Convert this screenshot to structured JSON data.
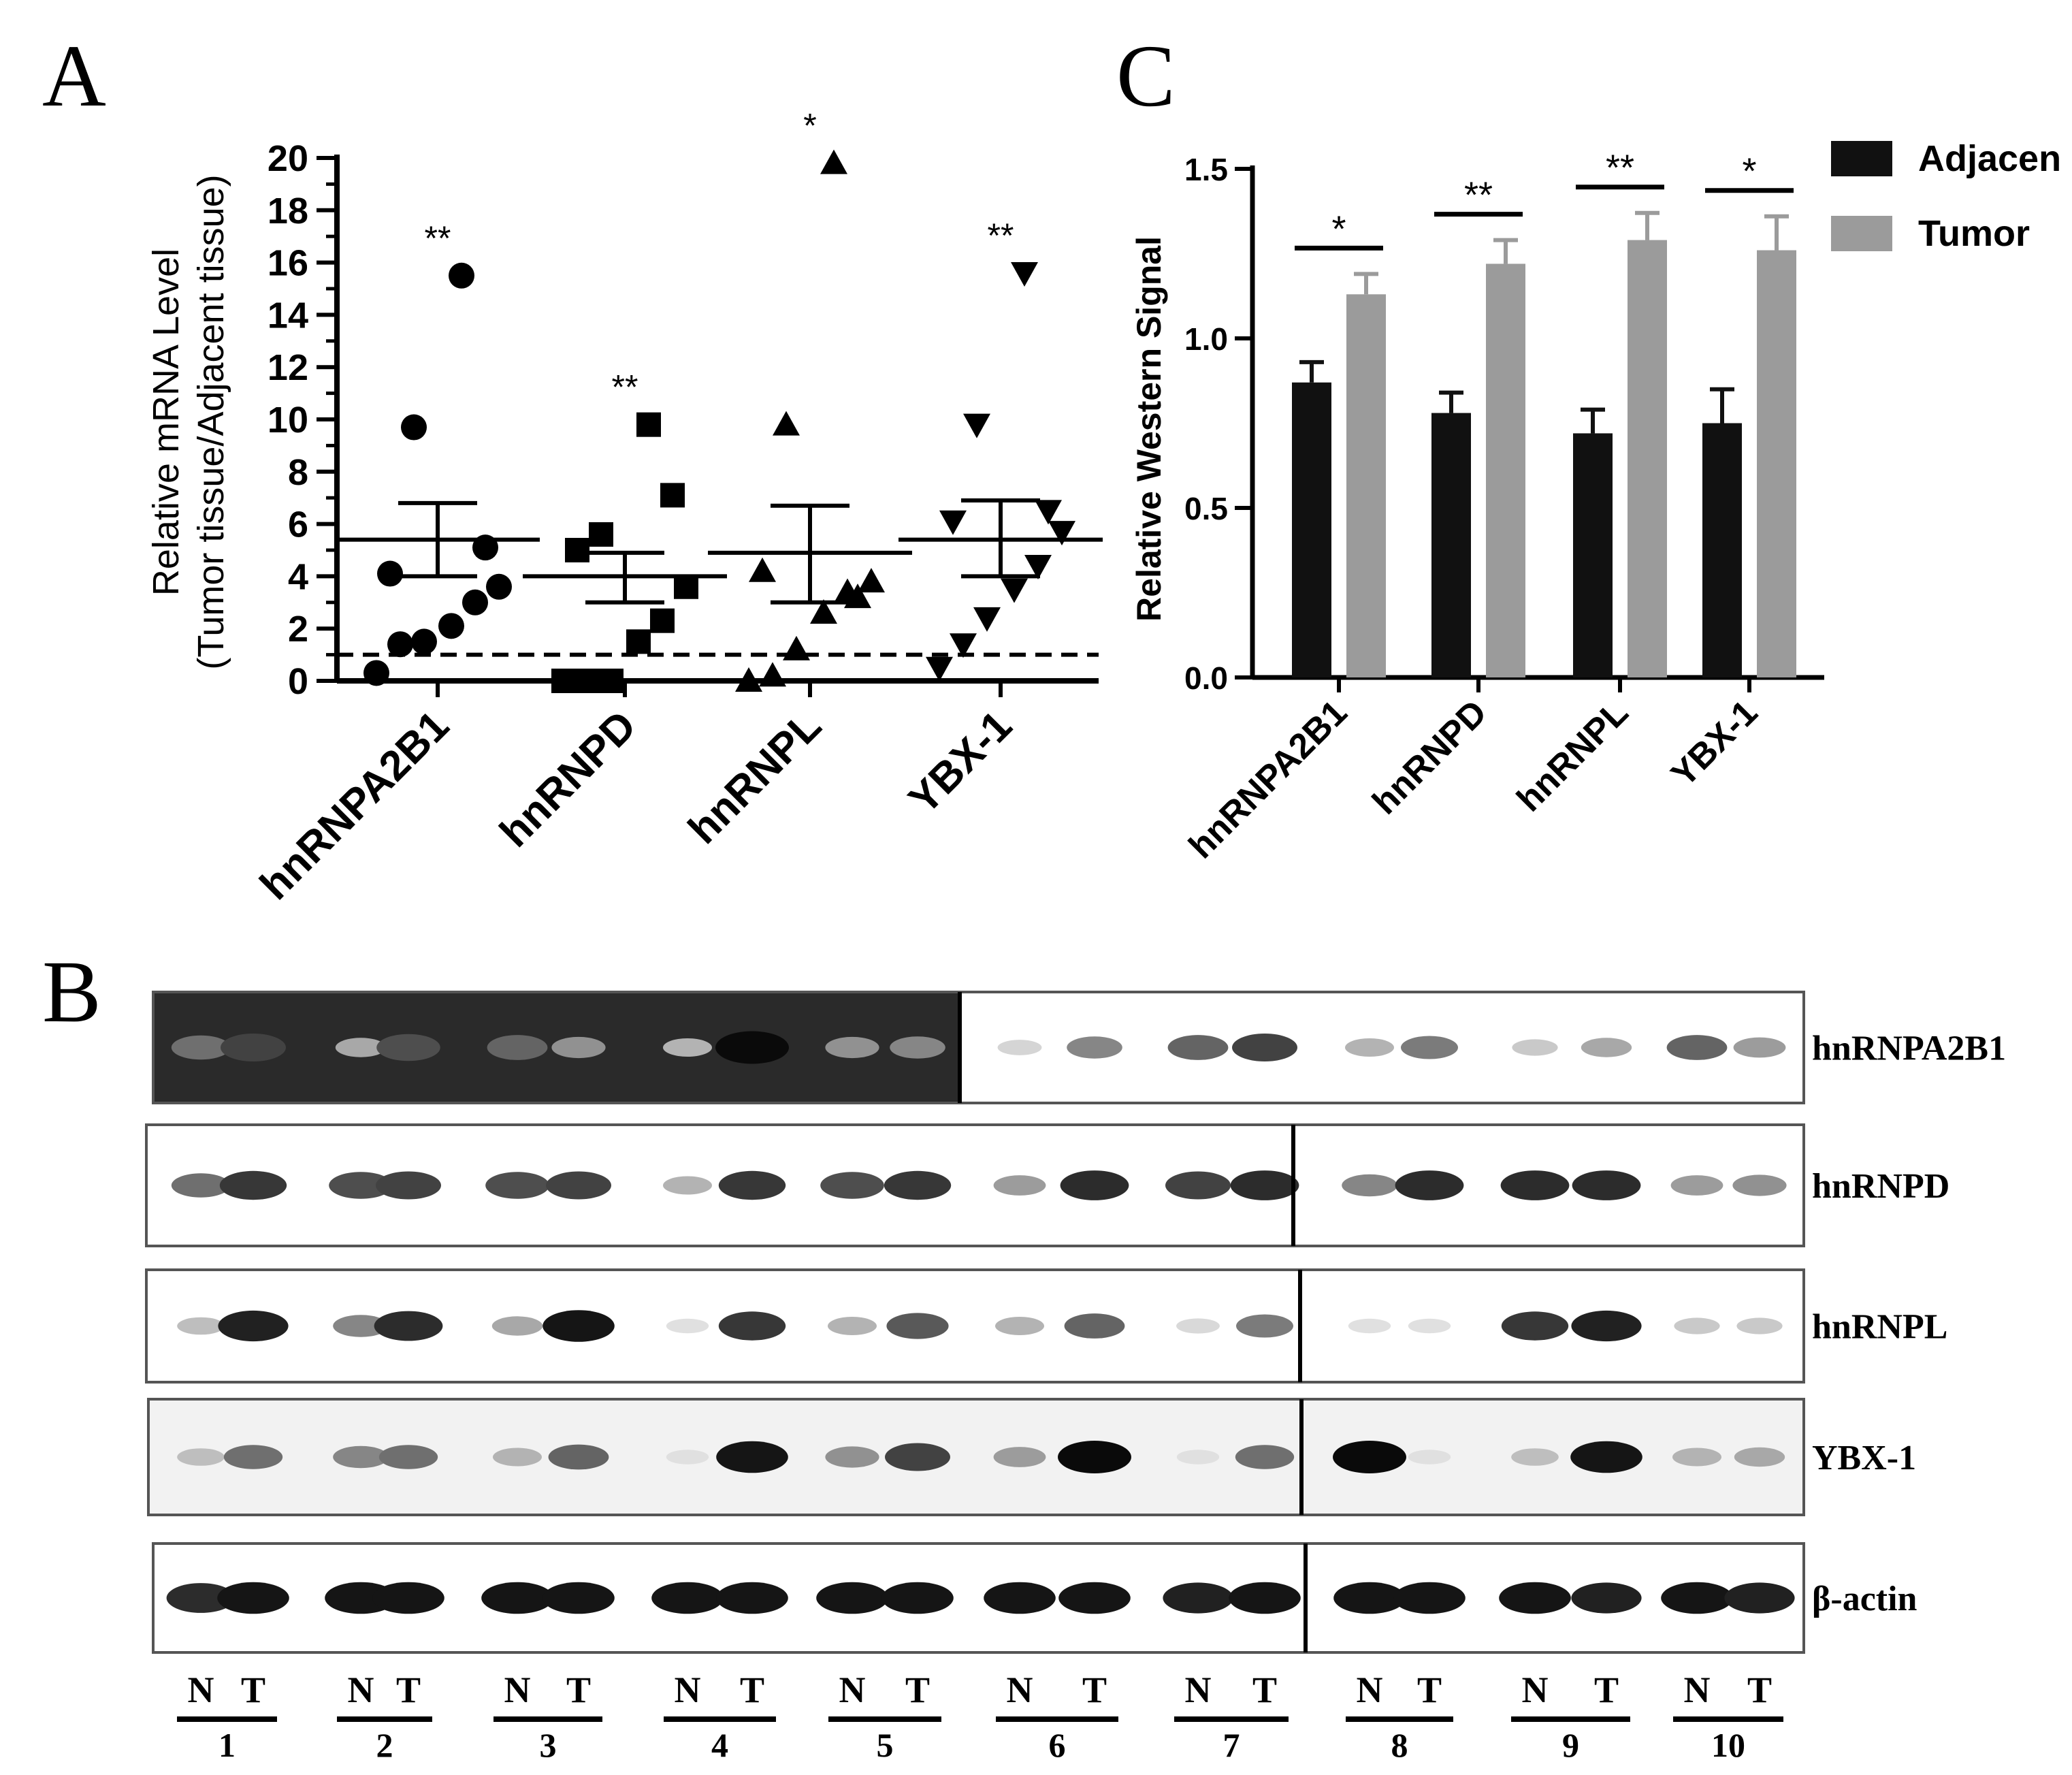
{
  "panels": {
    "a_letter": "A",
    "b_letter": "B",
    "c_letter": "C"
  },
  "chart_data": [
    {
      "type": "scatter",
      "ylabel_line1": "Relative mRNA Level",
      "ylabel_line2": "(Tumor tissue/Adjacent tissue)",
      "ylim": [
        0,
        20
      ],
      "yticks": [
        "0",
        "2",
        "4",
        "6",
        "8",
        "10",
        "12",
        "14",
        "16",
        "18",
        "20"
      ],
      "categories": [
        "hnRNPA2B1",
        "hnRNPD",
        "hnRNPL",
        "YBX-1"
      ],
      "markers": [
        "circle",
        "square",
        "triangle-up",
        "triangle-down"
      ],
      "reference_line": 1,
      "significance": [
        "**",
        "**",
        "*",
        "**"
      ],
      "groups": [
        {
          "name": "hnRNPA2B1",
          "values": [
            0.3,
            1.4,
            1.5,
            2.1,
            3.0,
            3.6,
            4.1,
            5.1,
            9.7,
            15.5
          ],
          "mean": 5.4,
          "sem_low": 4.0,
          "sem_high": 6.8
        },
        {
          "name": "hnRNPD",
          "values": [
            0,
            0,
            0,
            1.5,
            2.3,
            3.6,
            5.0,
            7.1,
            5.6,
            9.8
          ],
          "mean": 4.0,
          "sem_low": 3.0,
          "sem_high": 4.9
        },
        {
          "name": "hnRNPL",
          "values": [
            0,
            0.2,
            1.2,
            2.6,
            3.4,
            3.8,
            4.2,
            3.2,
            9.8,
            19.8
          ],
          "mean": 4.9,
          "sem_low": 3.0,
          "sem_high": 6.7
        },
        {
          "name": "YBX-1",
          "values": [
            0.5,
            1.4,
            2.4,
            3.5,
            4.4,
            5.7,
            6.1,
            6.5,
            9.8,
            15.6
          ],
          "mean": 5.4,
          "sem_low": 4.0,
          "sem_high": 6.9
        }
      ]
    },
    {
      "type": "bar",
      "ylabel": "Relative Western Signal",
      "ylim": [
        0,
        1.5
      ],
      "yticks": [
        "0.0",
        "0.5",
        "1.0",
        "1.5"
      ],
      "categories": [
        "hnRNPA2B1",
        "hnRNPD",
        "hnRNPL",
        "YBX-1"
      ],
      "legend_placement": "top-right",
      "significance": [
        "*",
        "**",
        "**",
        "*"
      ],
      "series": [
        {
          "name": "Adjacen",
          "color": "#111111",
          "values": [
            0.87,
            0.78,
            0.72,
            0.75
          ],
          "errors": [
            0.06,
            0.06,
            0.07,
            0.1
          ]
        },
        {
          "name": "Tumor",
          "color": "#9b9b9b",
          "values": [
            1.13,
            1.22,
            1.29,
            1.26
          ],
          "errors": [
            0.06,
            0.07,
            0.08,
            0.1
          ]
        }
      ]
    }
  ],
  "blot": {
    "proteins": [
      "hnRNPA2B1",
      "hnRNPD",
      "hnRNPL",
      "YBX-1",
      "β-actin"
    ],
    "lane_labels": [
      "N",
      "T",
      "N",
      "T",
      "N",
      "T",
      "N",
      "T",
      "N",
      "T",
      "N",
      "T",
      "N",
      "T",
      "N",
      "T",
      "N",
      "T",
      "N",
      "T"
    ],
    "samples": [
      "1",
      "2",
      "3",
      "4",
      "5",
      "6",
      "7",
      "8",
      "9",
      "10"
    ],
    "intensities": [
      [
        0.55,
        0.75,
        0.3,
        0.7,
        0.6,
        0.4,
        0.25,
        1.0,
        0.4,
        0.45,
        0.1,
        0.45,
        0.6,
        0.75,
        0.25,
        0.5,
        0.15,
        0.3,
        0.6,
        0.35
      ],
      [
        0.55,
        0.8,
        0.7,
        0.75,
        0.7,
        0.75,
        0.25,
        0.8,
        0.7,
        0.8,
        0.35,
        0.85,
        0.75,
        0.85,
        0.45,
        0.85,
        0.85,
        0.85,
        0.35,
        0.4
      ],
      [
        0.2,
        0.9,
        0.45,
        0.85,
        0.3,
        0.95,
        0.05,
        0.8,
        0.25,
        0.65,
        0.25,
        0.6,
        0.08,
        0.5,
        0.05,
        0.05,
        0.8,
        0.9,
        0.15,
        0.15
      ],
      [
        0.2,
        0.55,
        0.45,
        0.55,
        0.25,
        0.6,
        0.05,
        0.95,
        0.4,
        0.75,
        0.35,
        1.0,
        0.05,
        0.55,
        1.0,
        0.05,
        0.2,
        0.95,
        0.25,
        0.3
      ],
      [
        0.85,
        0.95,
        0.95,
        0.95,
        0.95,
        0.95,
        0.95,
        0.95,
        0.95,
        0.95,
        0.95,
        0.95,
        0.9,
        0.95,
        0.95,
        0.95,
        0.95,
        0.9,
        0.95,
        0.9
      ]
    ]
  }
}
